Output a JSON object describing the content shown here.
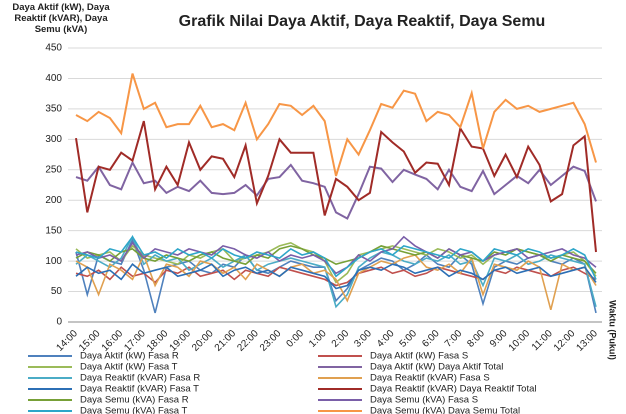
{
  "chart_data": {
    "type": "line",
    "title": "Grafik Nilai Daya Aktif, Daya Reaktif, Daya Semu",
    "y_label": "Daya Aktif (kW), Daya Reaktif (kVAR), Daya Semu (kVA)",
    "x_label": "Waktu (Pukul)",
    "categories": [
      "14:00",
      null,
      "15:00",
      null,
      "16:00",
      null,
      "17:00",
      null,
      "18:00",
      null,
      "19:00",
      null,
      "20:00",
      null,
      "21:00",
      null,
      "22:00",
      null,
      "23:00",
      null,
      "0:00",
      null,
      "1:00",
      null,
      "2:00",
      null,
      "3:00",
      null,
      "4:00",
      null,
      "5:00",
      null,
      "6:00",
      null,
      "7:00",
      null,
      "8:00",
      null,
      "9:00",
      null,
      "10:00",
      null,
      "11:00",
      null,
      "12:00",
      null,
      "13:00"
    ],
    "ylim": [
      0,
      450
    ],
    "yticks": [
      0,
      50,
      100,
      150,
      200,
      250,
      300,
      350,
      400,
      450
    ],
    "grid": true,
    "series": [
      {
        "name": "Daya Aktif (kW) Fasa R",
        "color": "#4f81bd",
        "values": [
          115,
          45,
          110,
          100,
          95,
          135,
          85,
          15,
          90,
          95,
          100,
          85,
          80,
          95,
          90,
          110,
          85,
          80,
          90,
          100,
          95,
          90,
          90,
          35,
          55,
          85,
          95,
          105,
          100,
          85,
          95,
          110,
          95,
          90,
          110,
          95,
          30,
          90,
          100,
          95,
          105,
          110,
          100,
          95,
          105,
          95,
          15
        ]
      },
      {
        "name": "Daya Aktif (kW) Fasa S",
        "color": "#c0504d",
        "values": [
          80,
          75,
          85,
          70,
          90,
          75,
          80,
          65,
          85,
          80,
          90,
          75,
          80,
          85,
          70,
          85,
          80,
          75,
          90,
          85,
          80,
          75,
          70,
          60,
          65,
          80,
          85,
          90,
          80,
          85,
          75,
          80,
          90,
          85,
          80,
          75,
          70,
          85,
          80,
          90,
          85,
          80,
          75,
          85,
          90,
          80,
          70
        ]
      },
      {
        "name": "Daya Aktif (kW) Fasa T",
        "color": "#9bbb59",
        "values": [
          120,
          105,
          110,
          115,
          100,
          125,
          110,
          105,
          100,
          95,
          110,
          105,
          115,
          120,
          100,
          105,
          110,
          115,
          125,
          130,
          120,
          115,
          100,
          65,
          80,
          110,
          115,
          120,
          125,
          120,
          115,
          110,
          120,
          115,
          105,
          110,
          95,
          110,
          115,
          120,
          115,
          110,
          105,
          110,
          115,
          100,
          75
        ]
      },
      {
        "name": "Daya Aktif (kW) Daya Aktif Total",
        "color": "#8064a2",
        "values": [
          238,
          232,
          255,
          225,
          218,
          262,
          228,
          232,
          212,
          222,
          215,
          232,
          212,
          210,
          212,
          225,
          208,
          235,
          238,
          258,
          232,
          228,
          222,
          180,
          170,
          210,
          255,
          252,
          230,
          250,
          242,
          235,
          218,
          250,
          222,
          215,
          248,
          210,
          225,
          240,
          228,
          250,
          225,
          240,
          255,
          248,
          198
        ]
      },
      {
        "name": "Daya Reaktif (kVAR) Fasa R",
        "color": "#4bacc6",
        "values": [
          95,
          110,
          100,
          90,
          105,
          140,
          95,
          110,
          100,
          105,
          85,
          95,
          105,
          90,
          100,
          110,
          85,
          95,
          100,
          105,
          100,
          95,
          90,
          25,
          45,
          90,
          105,
          115,
          110,
          100,
          95,
          105,
          100,
          110,
          95,
          100,
          60,
          105,
          100,
          110,
          95,
          100,
          110,
          105,
          100,
          95,
          25
        ]
      },
      {
        "name": "Daya Reaktif (kVAR) Fasa S",
        "color": "#e0a050",
        "values": [
          100,
          90,
          45,
          95,
          85,
          70,
          110,
          60,
          95,
          90,
          75,
          100,
          95,
          80,
          90,
          70,
          95,
          85,
          75,
          90,
          95,
          80,
          85,
          70,
          35,
          80,
          90,
          100,
          95,
          105,
          110,
          90,
          85,
          95,
          80,
          105,
          45,
          95,
          90,
          85,
          100,
          90,
          20,
          95,
          85,
          90,
          60
        ]
      },
      {
        "name": "Daya Reaktif (kVAR) Fasa T",
        "color": "#2c6fb5",
        "values": [
          75,
          90,
          80,
          85,
          70,
          95,
          80,
          85,
          90,
          75,
          80,
          85,
          95,
          75,
          85,
          90,
          80,
          85,
          75,
          90,
          85,
          80,
          75,
          55,
          60,
          85,
          90,
          85,
          95,
          90,
          80,
          85,
          90,
          75,
          85,
          80,
          70,
          85,
          90,
          80,
          85,
          90,
          75,
          80,
          85,
          90,
          65
        ]
      },
      {
        "name": "Daya Reaktif (kVAR) Daya Reaktif Total",
        "color": "#a02b27",
        "values": [
          302,
          180,
          255,
          250,
          278,
          265,
          330,
          218,
          255,
          225,
          295,
          250,
          272,
          268,
          238,
          290,
          195,
          240,
          300,
          278,
          278,
          278,
          175,
          235,
          222,
          200,
          212,
          312,
          295,
          280,
          245,
          262,
          260,
          225,
          318,
          288,
          285,
          240,
          275,
          238,
          288,
          258,
          198,
          210,
          290,
          305,
          115
        ]
      },
      {
        "name": "Daya Semu (kVA) Fasa R",
        "color": "#77a037",
        "values": [
          105,
          115,
          110,
          100,
          115,
          120,
          105,
          100,
          110,
          105,
          100,
          110,
          115,
          105,
          100,
          95,
          110,
          105,
          120,
          125,
          120,
          110,
          105,
          95,
          100,
          105,
          115,
          125,
          120,
          115,
          110,
          115,
          105,
          120,
          110,
          105,
          100,
          115,
          110,
          120,
          115,
          110,
          100,
          110,
          105,
          100,
          80
        ]
      },
      {
        "name": "Daya Semu (kVA) Fasa S",
        "color": "#7a5ea8",
        "values": [
          110,
          115,
          105,
          110,
          100,
          130,
          105,
          120,
          115,
          110,
          120,
          115,
          110,
          125,
          120,
          110,
          105,
          115,
          100,
          110,
          105,
          110,
          100,
          80,
          90,
          110,
          100,
          115,
          120,
          140,
          125,
          115,
          105,
          120,
          110,
          115,
          100,
          110,
          115,
          120,
          105,
          110,
          115,
          120,
          110,
          105,
          90
        ]
      },
      {
        "name": "Daya Semu (kVA) Fasa T",
        "color": "#2ea6c9",
        "values": [
          115,
          110,
          105,
          120,
          115,
          140,
          110,
          115,
          105,
          120,
          110,
          115,
          105,
          120,
          110,
          105,
          115,
          110,
          105,
          120,
          110,
          115,
          105,
          75,
          90,
          105,
          115,
          120,
          110,
          125,
          120,
          115,
          110,
          105,
          120,
          115,
          100,
          120,
          115,
          110,
          120,
          115,
          105,
          110,
          120,
          110,
          70
        ]
      },
      {
        "name": "Daya Semu (kVA) Daya Semu Total",
        "color": "#f79646",
        "values": [
          340,
          330,
          345,
          335,
          310,
          408,
          350,
          360,
          320,
          325,
          325,
          355,
          320,
          325,
          315,
          360,
          300,
          325,
          358,
          355,
          340,
          355,
          330,
          240,
          300,
          275,
          315,
          358,
          352,
          380,
          375,
          330,
          345,
          340,
          320,
          376,
          285,
          345,
          365,
          350,
          355,
          345,
          350,
          355,
          360,
          325,
          262
        ]
      }
    ]
  }
}
